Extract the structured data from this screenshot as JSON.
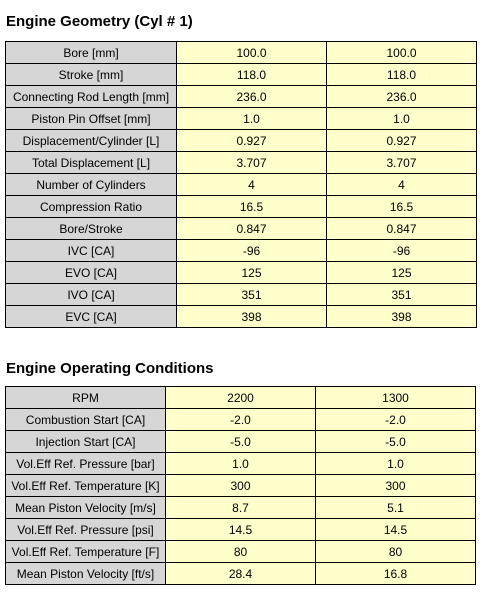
{
  "geometry": {
    "title": "Engine Geometry (Cyl # 1)",
    "rows": [
      {
        "label": "Bore [mm]",
        "v1": "100.0",
        "v2": "100.0"
      },
      {
        "label": "Stroke [mm]",
        "v1": "118.0",
        "v2": "118.0"
      },
      {
        "label": "Connecting Rod Length [mm]",
        "v1": "236.0",
        "v2": "236.0"
      },
      {
        "label": "Piston Pin Offset [mm]",
        "v1": "1.0",
        "v2": "1.0"
      },
      {
        "label": "Displacement/Cylinder [L]",
        "v1": "0.927",
        "v2": "0.927"
      },
      {
        "label": "Total Displacement [L]",
        "v1": "3.707",
        "v2": "3.707"
      },
      {
        "label": "Number of Cylinders",
        "v1": "4",
        "v2": "4"
      },
      {
        "label": "Compression Ratio",
        "v1": "16.5",
        "v2": "16.5"
      },
      {
        "label": "Bore/Stroke",
        "v1": "0.847",
        "v2": "0.847"
      },
      {
        "label": "IVC [CA]",
        "v1": "-96",
        "v2": "-96"
      },
      {
        "label": "EVO [CA]",
        "v1": "125",
        "v2": "125"
      },
      {
        "label": "IVO [CA]",
        "v1": "351",
        "v2": "351"
      },
      {
        "label": "EVC [CA]",
        "v1": "398",
        "v2": "398"
      }
    ]
  },
  "operating": {
    "title": "Engine Operating Conditions",
    "rows": [
      {
        "label": "RPM",
        "v1": "2200",
        "v2": "1300"
      },
      {
        "label": "Combustion Start [CA]",
        "v1": "-2.0",
        "v2": "-2.0"
      },
      {
        "label": "Injection Start [CA]",
        "v1": "-5.0",
        "v2": "-5.0"
      },
      {
        "label": "Vol.Eff Ref. Pressure [bar]",
        "v1": "1.0",
        "v2": "1.0"
      },
      {
        "label": "Vol.Eff Ref. Temperature [K]",
        "v1": "300",
        "v2": "300"
      },
      {
        "label": "Mean Piston Velocity [m/s]",
        "v1": "8.7",
        "v2": "5.1"
      },
      {
        "label": "Vol.Eff Ref. Pressure [psi]",
        "v1": "14.5",
        "v2": "14.5"
      },
      {
        "label": "Vol.Eff Ref. Temperature [F]",
        "v1": "80",
        "v2": "80"
      },
      {
        "label": "Mean Piston Velocity [ft/s]",
        "v1": "28.4",
        "v2": "16.8"
      }
    ]
  },
  "colors": {
    "label_cell": "#d6d6d6",
    "value_cell": "#ffffcc",
    "border": "#000000"
  }
}
